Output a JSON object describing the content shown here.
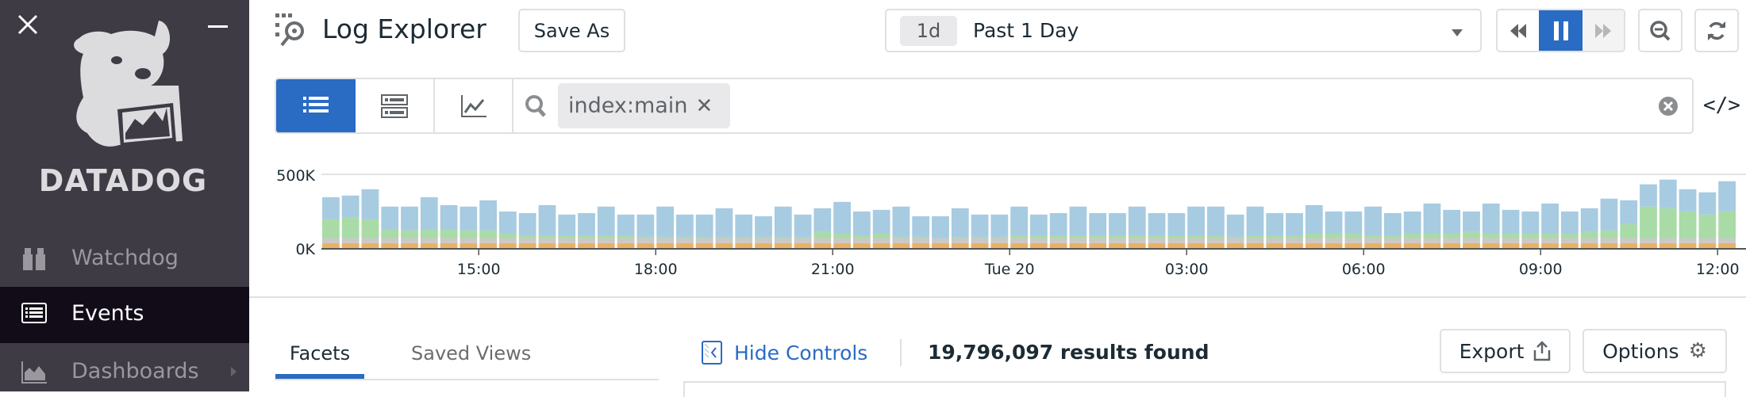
{
  "sidebar": {
    "logo_text": "DATADOG",
    "items": [
      {
        "label": "Watchdog",
        "icon": "binoculars-icon",
        "active": false
      },
      {
        "label": "Events",
        "icon": "list-icon",
        "active": true
      },
      {
        "label": "Dashboards",
        "icon": "area-chart-icon",
        "active": false,
        "has_submenu": true
      }
    ]
  },
  "header": {
    "title": "Log Explorer",
    "save_as_label": "Save As",
    "time": {
      "chip": "1d",
      "label": "Past 1 Day"
    }
  },
  "search": {
    "tag": "index:main",
    "views": [
      "list-view",
      "pattern-view",
      "timeseries-view"
    ],
    "active_view": "list-view"
  },
  "chart_data": {
    "type": "bar",
    "stacked": true,
    "yticks": [
      "0K",
      "500K"
    ],
    "ylim": [
      0,
      500000
    ],
    "xticks": [
      "15:00",
      "18:00",
      "21:00",
      "Tue 20",
      "03:00",
      "06:00",
      "09:00",
      "12:00"
    ],
    "x_start": "12:20",
    "interval": "20m",
    "grid": true,
    "colors": [
      "#e8b266",
      "#c9c9c9",
      "#a9dba6",
      "#a7cbe1"
    ],
    "series": [
      {
        "values": [
          34,
          34,
          34,
          34,
          34,
          34,
          34,
          34,
          34,
          34,
          34,
          34,
          34,
          34,
          34,
          34,
          34,
          34,
          34,
          34,
          34,
          34,
          34,
          34,
          34,
          34,
          34,
          34,
          34,
          34,
          34,
          34,
          34,
          34,
          34,
          34,
          34,
          34,
          34,
          34,
          34,
          34,
          34,
          34,
          34,
          34,
          34,
          34,
          34,
          34,
          34,
          34,
          34,
          34,
          34,
          34,
          34,
          34,
          34,
          34,
          34,
          34,
          34,
          34,
          34,
          34,
          34,
          34,
          34,
          34,
          34,
          34
        ]
      },
      {
        "values": [
          33,
          33,
          33,
          33,
          33,
          33,
          33,
          33,
          33,
          33,
          33,
          33,
          33,
          33,
          33,
          33,
          33,
          33,
          33,
          33,
          33,
          33,
          33,
          33,
          33,
          33,
          33,
          33,
          33,
          33,
          33,
          31,
          33,
          33,
          33,
          33,
          33,
          33,
          33,
          33,
          33,
          33,
          33,
          33,
          33,
          33,
          33,
          33,
          33,
          33,
          33,
          33,
          33,
          33,
          33,
          33,
          33,
          33,
          33,
          33,
          33,
          33,
          33,
          33,
          33,
          33,
          33,
          33,
          33,
          33,
          33,
          33
        ]
      },
      {
        "values": [
          127,
          138,
          127,
          62,
          52,
          62,
          62,
          52,
          52,
          30,
          19,
          19,
          19,
          19,
          19,
          19,
          9,
          9,
          9,
          9,
          9,
          9,
          9,
          9,
          9,
          41,
          30,
          19,
          30,
          9,
          9,
          0,
          9,
          9,
          9,
          19,
          19,
          19,
          19,
          19,
          19,
          19,
          19,
          19,
          19,
          19,
          9,
          19,
          19,
          19,
          30,
          30,
          30,
          19,
          19,
          30,
          30,
          30,
          41,
          30,
          30,
          30,
          30,
          30,
          41,
          52,
          95,
          214,
          203,
          181,
          160,
          181
        ]
      },
      {
        "values": [
          151,
          151,
          205,
          152,
          162,
          216,
          162,
          162,
          205,
          151,
          151,
          205,
          141,
          151,
          195,
          141,
          151,
          205,
          151,
          151,
          194,
          151,
          140,
          205,
          151,
          162,
          216,
          162,
          162,
          205,
          140,
          151,
          194,
          151,
          151,
          195,
          141,
          151,
          195,
          151,
          151,
          195,
          151,
          151,
          195,
          195,
          151,
          195,
          151,
          151,
          194,
          151,
          151,
          195,
          151,
          151,
          205,
          162,
          140,
          205,
          162,
          151,
          205,
          151,
          162,
          216,
          162,
          151,
          194,
          151,
          151,
          205
        ]
      }
    ],
    "value_unit": "K"
  },
  "controls": {
    "tabs": [
      "Facets",
      "Saved Views"
    ],
    "active_tab": "Facets",
    "hide_controls_label": "Hide Controls",
    "results": "19,796,097 results found",
    "export_label": "Export",
    "options_label": "Options"
  },
  "accent": "#2a6bc3"
}
